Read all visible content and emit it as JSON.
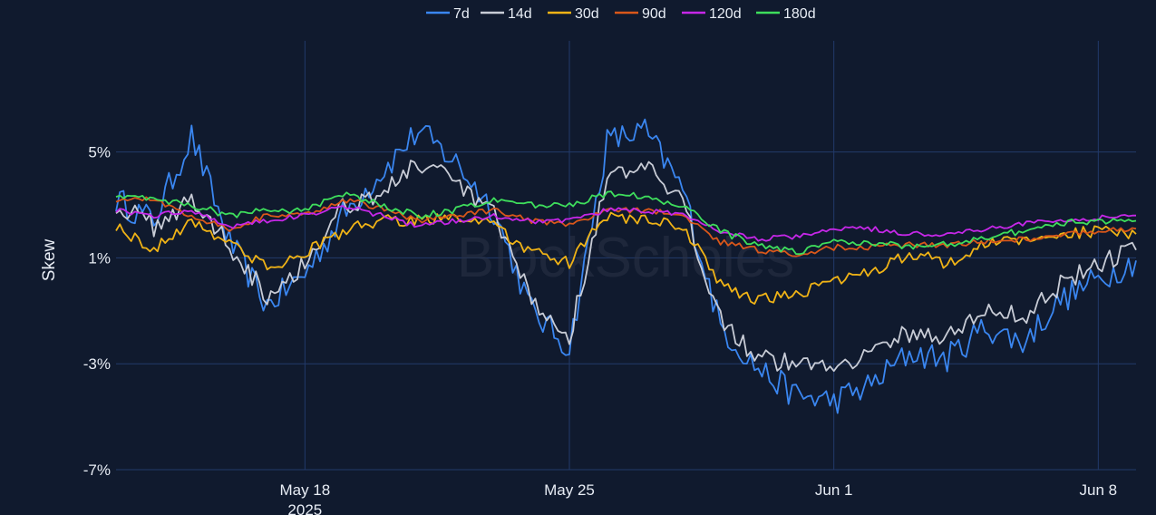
{
  "watermark": "BlockScholes",
  "chart_data": {
    "type": "line",
    "title": "",
    "xlabel": "",
    "ylabel": "Skew",
    "x_range": [
      "2025-05-13",
      "2025-06-09"
    ],
    "ylim": [
      -7,
      9.2
    ],
    "y_ticks": [
      5,
      1,
      -3,
      -7
    ],
    "y_tick_labels": [
      "5%",
      "1%",
      "-3%",
      "-7%"
    ],
    "x_ticks": [
      "2025-05-18",
      "2025-05-25",
      "2025-06-01",
      "2025-06-08"
    ],
    "x_tick_labels": [
      "May 18",
      "May 25",
      "Jun 1",
      "Jun 8"
    ],
    "x_tick_sublabel": "2025",
    "grid": true,
    "legend_position": "top-center",
    "series_dates": [
      "2025-05-13",
      "2025-05-14",
      "2025-05-15",
      "2025-05-16",
      "2025-05-17",
      "2025-05-18",
      "2025-05-19",
      "2025-05-20",
      "2025-05-21",
      "2025-05-22",
      "2025-05-23",
      "2025-05-24",
      "2025-05-25",
      "2025-05-26",
      "2025-05-27",
      "2025-05-28",
      "2025-05-29",
      "2025-05-30",
      "2025-05-31",
      "2025-06-01",
      "2025-06-02",
      "2025-06-03",
      "2025-06-04",
      "2025-06-05",
      "2025-06-06",
      "2025-06-07",
      "2025-06-08",
      "2025-06-09"
    ],
    "series": [
      {
        "name": "7d",
        "color": "#3a86f0",
        "values": [
          3.2,
          2.4,
          5.6,
          1.6,
          -0.8,
          0.4,
          2.6,
          4.2,
          5.8,
          4.6,
          2.8,
          -1.0,
          -2.4,
          5.4,
          5.8,
          3.6,
          -1.6,
          -3.2,
          -4.2,
          -4.4,
          -3.8,
          -2.6,
          -2.8,
          -1.6,
          -2.2,
          -0.6,
          0.2,
          0.9
        ]
      },
      {
        "name": "14d",
        "color": "#c8ccd6",
        "values": [
          3.0,
          2.2,
          3.2,
          1.5,
          -0.4,
          0.8,
          3.0,
          3.4,
          4.6,
          3.8,
          2.6,
          -0.6,
          -2.0,
          4.0,
          4.4,
          3.0,
          -1.2,
          -2.8,
          -3.0,
          -3.0,
          -2.6,
          -1.8,
          -2.0,
          -1.0,
          -1.2,
          0.0,
          0.8,
          1.3
        ]
      },
      {
        "name": "30d",
        "color": "#f0b316",
        "values": [
          2.2,
          1.3,
          2.4,
          1.6,
          0.6,
          1.2,
          2.0,
          2.4,
          2.4,
          2.6,
          2.2,
          1.2,
          0.8,
          2.6,
          2.4,
          2.2,
          0.0,
          -0.6,
          -0.4,
          0.2,
          0.4,
          1.2,
          0.8,
          1.5,
          1.7,
          1.9,
          2.0,
          1.9
        ]
      },
      {
        "name": "90d",
        "color": "#d9571a",
        "values": [
          3.2,
          3.2,
          2.6,
          2.1,
          2.6,
          2.6,
          3.2,
          2.9,
          2.4,
          2.6,
          2.8,
          2.4,
          2.2,
          2.8,
          2.8,
          2.6,
          1.6,
          1.3,
          1.1,
          1.4,
          1.4,
          1.5,
          1.5,
          1.6,
          1.7,
          1.9,
          2.0,
          2.1
        ]
      },
      {
        "name": "120d",
        "color": "#c627e8",
        "values": [
          2.8,
          2.6,
          2.8,
          2.2,
          2.4,
          2.6,
          3.0,
          2.6,
          2.2,
          2.4,
          2.6,
          2.4,
          2.4,
          2.8,
          2.8,
          2.6,
          2.0,
          1.7,
          1.8,
          2.1,
          2.1,
          1.9,
          1.9,
          2.1,
          2.3,
          2.4,
          2.5,
          2.6
        ]
      },
      {
        "name": "180d",
        "color": "#3ede5c",
        "values": [
          3.4,
          3.2,
          3.0,
          2.6,
          2.8,
          2.8,
          3.4,
          3.0,
          2.6,
          2.8,
          3.2,
          3.0,
          3.0,
          3.4,
          3.3,
          3.0,
          2.0,
          1.5,
          1.2,
          1.6,
          1.6,
          1.4,
          1.5,
          1.8,
          2.0,
          2.3,
          2.4,
          2.4
        ]
      }
    ]
  }
}
